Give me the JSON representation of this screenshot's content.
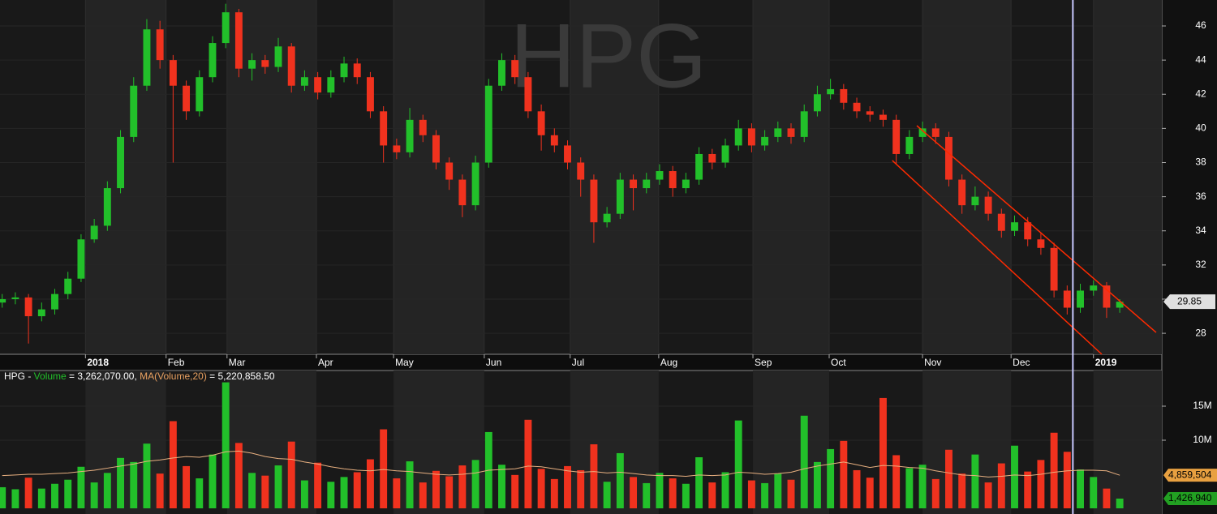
{
  "chart_data": [
    {
      "type": "candlestick",
      "watermark": "HPG",
      "up_color": "#22c02a",
      "down_color": "#f0321e",
      "xlim": [
        -0.5,
        264.6
      ],
      "ylim": [
        26.77,
        47.52
      ],
      "yticks": [
        28,
        30,
        32,
        34,
        36,
        38,
        40,
        42,
        44,
        46
      ],
      "xticks": [
        {
          "value": 19,
          "label": "2018"
        },
        {
          "value": 37.4,
          "label": "Feb"
        },
        {
          "value": 51.3,
          "label": "Mar"
        },
        {
          "value": 71.7,
          "label": "Apr"
        },
        {
          "value": 89.3,
          "label": "May"
        },
        {
          "value": 110,
          "label": "Jun"
        },
        {
          "value": 129.6,
          "label": "Jul"
        },
        {
          "value": 149.8,
          "label": "Aug"
        },
        {
          "value": 171.3,
          "label": "Sep"
        },
        {
          "value": 188.7,
          "label": "Oct"
        },
        {
          "value": 210,
          "label": "Nov"
        },
        {
          "value": 230.2,
          "label": "Dec"
        },
        {
          "value": 249,
          "label": "2019"
        }
      ],
      "x": [
        0,
        3,
        6,
        9,
        12,
        15,
        18,
        21,
        24,
        27,
        30,
        33,
        36,
        39,
        42,
        45,
        48,
        51,
        54,
        57,
        60,
        63,
        66,
        69,
        72,
        75,
        78,
        81,
        84,
        87,
        90,
        93,
        96,
        99,
        102,
        105,
        108,
        111,
        114,
        117,
        120,
        123,
        126,
        129,
        132,
        135,
        138,
        141,
        144,
        147,
        150,
        153,
        156,
        159,
        162,
        165,
        168,
        171,
        174,
        177,
        180,
        183,
        186,
        189,
        192,
        195,
        198,
        201,
        204,
        207,
        210,
        213,
        216,
        219,
        222,
        225,
        228,
        231,
        234,
        237,
        240,
        243,
        246,
        249,
        252,
        255
      ],
      "open": [
        29.8,
        30,
        30.1,
        29,
        29.4,
        30.3,
        31.2,
        33.5,
        34.3,
        36.5,
        39.5,
        42.5,
        45.8,
        44,
        42.5,
        41,
        43,
        45,
        46.8,
        43.5,
        44,
        43.6,
        44.8,
        42.5,
        43,
        42.1,
        43,
        43.8,
        43,
        41,
        39,
        38.6,
        40.5,
        39.6,
        38,
        37,
        35.5,
        38,
        42.5,
        44,
        43,
        41,
        39.6,
        39,
        38,
        37,
        34.5,
        35,
        37,
        36.5,
        37,
        37.5,
        36.5,
        37,
        38.5,
        38,
        39,
        40,
        39,
        39.5,
        40,
        39.5,
        41,
        42,
        42.3,
        41.5,
        41,
        40.8,
        40.5,
        38.5,
        39.5,
        40,
        39.5,
        37,
        35.5,
        36,
        35,
        34,
        34.5,
        33.5,
        33,
        30.5,
        29.5,
        30.5,
        30.8,
        29.5
      ],
      "high": [
        30.3,
        30.4,
        30.3,
        29.8,
        30.6,
        31.6,
        33.8,
        34.7,
        36.9,
        39.9,
        43,
        46.4,
        46.3,
        44.3,
        42.8,
        43.4,
        45.4,
        47.3,
        47,
        44.4,
        44.3,
        45.3,
        45,
        43.4,
        43.3,
        43.4,
        44.2,
        44.1,
        43.3,
        41.3,
        39.4,
        41.2,
        40.8,
        39.9,
        38.3,
        37.3,
        38.4,
        42.9,
        44.4,
        44.3,
        43.3,
        41.4,
        40,
        39.3,
        38.3,
        37.3,
        35.4,
        37.4,
        37.3,
        37.4,
        37.9,
        37.8,
        37.4,
        38.9,
        38.8,
        39.4,
        40.5,
        40.3,
        39.9,
        40.4,
        40.3,
        41.4,
        42.5,
        42.9,
        42.6,
        41.8,
        41.3,
        41.1,
        40.8,
        39.9,
        40.4,
        40.3,
        39.8,
        37.3,
        36.6,
        36.3,
        35.3,
        34.9,
        34.8,
        33.9,
        33.3,
        30.8,
        30.9,
        31.1,
        31,
        30
      ],
      "low": [
        29.5,
        29.7,
        27.4,
        28.7,
        29.1,
        30,
        31,
        33.3,
        34,
        36.2,
        39.2,
        42.2,
        43.5,
        38,
        40.5,
        40.7,
        42.7,
        44.7,
        43,
        42.8,
        43.2,
        43.3,
        42.1,
        42.2,
        41.7,
        41.8,
        42.7,
        42.6,
        40.6,
        38,
        38.2,
        38.3,
        39.2,
        37.6,
        36.4,
        34.8,
        35.2,
        37.7,
        42.2,
        42.6,
        40.6,
        38.7,
        38.6,
        37.6,
        36,
        33.3,
        34.2,
        34.7,
        35.2,
        36.2,
        36.7,
        36,
        36.2,
        36.7,
        37.6,
        37.7,
        38.7,
        38.6,
        38.7,
        39.2,
        39.1,
        39.2,
        40.7,
        41.7,
        41.1,
        40.6,
        40.4,
        40.1,
        37.9,
        38.2,
        39.2,
        39.1,
        36.6,
        35,
        35.2,
        34.6,
        33.6,
        33.7,
        33.1,
        32.6,
        30.1,
        29.1,
        29.2,
        30.2,
        28.9,
        29.2
      ],
      "close": [
        30,
        30.1,
        29,
        29.4,
        30.3,
        31.2,
        33.5,
        34.3,
        36.5,
        39.5,
        42.5,
        45.8,
        44,
        42.5,
        41,
        43,
        45,
        46.8,
        43.5,
        44,
        43.6,
        44.8,
        42.5,
        43,
        42.1,
        43,
        43.8,
        43,
        41,
        39,
        38.6,
        40.5,
        39.6,
        38,
        37,
        35.5,
        38,
        42.5,
        44,
        43,
        41,
        39.6,
        39,
        38,
        37,
        34.5,
        35,
        37,
        36.5,
        37,
        37.5,
        36.5,
        37,
        38.5,
        38,
        39,
        40,
        39,
        39.5,
        40,
        39.5,
        41,
        42,
        42.3,
        41.5,
        41,
        40.8,
        40.5,
        38.5,
        39.5,
        40,
        39.5,
        37,
        35.5,
        36,
        35,
        34,
        34.5,
        33.5,
        33,
        30.5,
        29.5,
        30.5,
        30.8,
        29.5,
        29.85
      ],
      "last_tag": {
        "value": 29.85,
        "label": "29.85"
      },
      "trendlines": [
        {
          "x": [
            208.7,
            263.3
          ],
          "y": [
            40.16,
            28.05
          ],
          "color": "#ff2a00"
        },
        {
          "x": [
            203.1,
            250.9
          ],
          "y": [
            38.12,
            26.77
          ],
          "color": "#ff2a00"
        }
      ],
      "cursor_x": 244.3
    },
    {
      "type": "volume",
      "legend": [
        {
          "text": "HPG - ",
          "color": "#ffffff"
        },
        {
          "text": "Volume",
          "color": "#22c02a"
        },
        {
          "text": " = 3,262,070.00, ",
          "color": "#ffffff"
        },
        {
          "text": "MA(Volume,20)",
          "color": "#e8a060"
        },
        {
          "text": " = 5,220,858.50",
          "color": "#ffffff"
        }
      ],
      "ylim": [
        0,
        19880000
      ],
      "yticks": [
        {
          "value": 10000000,
          "label": "10M"
        },
        {
          "value": 15000000,
          "label": "15M"
        }
      ],
      "values": [
        3100000,
        2800000,
        4500000,
        2900000,
        3600000,
        4200000,
        6100000,
        3800000,
        5200000,
        7400000,
        6800000,
        9500000,
        5100000,
        12800000,
        6200000,
        4400000,
        7900000,
        18500000,
        9600000,
        5200000,
        4800000,
        6300000,
        9800000,
        4100000,
        6700000,
        3900000,
        4600000,
        5300000,
        7200000,
        11600000,
        4400000,
        6900000,
        3800000,
        5500000,
        4700000,
        6300000,
        7100000,
        11200000,
        6400000,
        4900000,
        13000000,
        5800000,
        4300000,
        6200000,
        5600000,
        9400000,
        3900000,
        8100000,
        4600000,
        3700000,
        5200000,
        4400000,
        3600000,
        7500000,
        3800000,
        5300000,
        12900000,
        4100000,
        3700000,
        5100000,
        4200000,
        13600000,
        6800000,
        8700000,
        9900000,
        5600000,
        4500000,
        16200000,
        7800000,
        5900000,
        6400000,
        4300000,
        8600000,
        5100000,
        7900000,
        3800000,
        6600000,
        9200000,
        5400000,
        7100000,
        11100000,
        8300000,
        5700000,
        4600000,
        2900000,
        1426940
      ],
      "ma": [
        4800000,
        4900000,
        5000000,
        5000000,
        5100000,
        5200000,
        5400000,
        5600000,
        5900000,
        6200000,
        6500000,
        6900000,
        7100000,
        7400000,
        7600000,
        7500000,
        7800000,
        8300000,
        8400000,
        8100000,
        7600000,
        7300000,
        7200000,
        6800000,
        6500000,
        6100000,
        5800000,
        5600000,
        5500000,
        5700000,
        5500000,
        5400000,
        5200000,
        5000000,
        4900000,
        5000000,
        5200000,
        5600000,
        5700000,
        5800000,
        6200000,
        6100000,
        5800000,
        5500000,
        5300000,
        5400000,
        5200000,
        5300000,
        5100000,
        4900000,
        4800000,
        4800000,
        4700000,
        4900000,
        4800000,
        4900000,
        5300000,
        5200000,
        5000000,
        5100000,
        5300000,
        5800000,
        6200000,
        6500000,
        6800000,
        6400000,
        6000000,
        6300000,
        6200000,
        6000000,
        5900000,
        5500000,
        5200000,
        4900000,
        4800000,
        4600000,
        4700000,
        4900000,
        4800000,
        5000000,
        5300000,
        5500000,
        5600000,
        5600000,
        5500000,
        4859504
      ],
      "ma_color": "#e8b080",
      "tags": [
        {
          "value": 4859504,
          "label": "4,859,504",
          "color": "#e8a040"
        },
        {
          "value": 1426940,
          "label": "1,426,940",
          "color": "#22a022"
        }
      ]
    }
  ]
}
